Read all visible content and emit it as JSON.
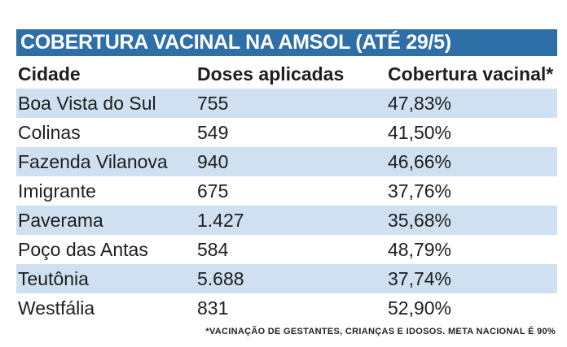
{
  "title": "COBERTURA VACINAL NA AMSOL (ATÉ 29/5)",
  "headers": {
    "city": "Cidade",
    "doses": "Doses aplicadas",
    "coverage": "Cobertura vacinal*"
  },
  "rows": [
    {
      "city": "Boa Vista do Sul",
      "doses": "755",
      "coverage": "47,83%"
    },
    {
      "city": "Colinas",
      "doses": "549",
      "coverage": "41,50%"
    },
    {
      "city": "Fazenda Vilanova",
      "doses": "940",
      "coverage": "46,66%"
    },
    {
      "city": "Imigrante",
      "doses": "675",
      "coverage": "37,76%"
    },
    {
      "city": "Paverama",
      "doses": "1.427",
      "coverage": "35,68%"
    },
    {
      "city": "Poço das Antas",
      "doses": "584",
      "coverage": "48,79%"
    },
    {
      "city": "Teutônia",
      "doses": "5.688",
      "coverage": "37,74%"
    },
    {
      "city": "Westfália",
      "doses": "831",
      "coverage": "52,90%"
    }
  ],
  "footnote": "*VACINAÇÃO DE GESTANTES, CRIANÇAS E IDOSOS. META NACIONAL É 90%",
  "colors": {
    "title_bg": "#2e6fa8",
    "row_shade": "#cfe0f0"
  }
}
